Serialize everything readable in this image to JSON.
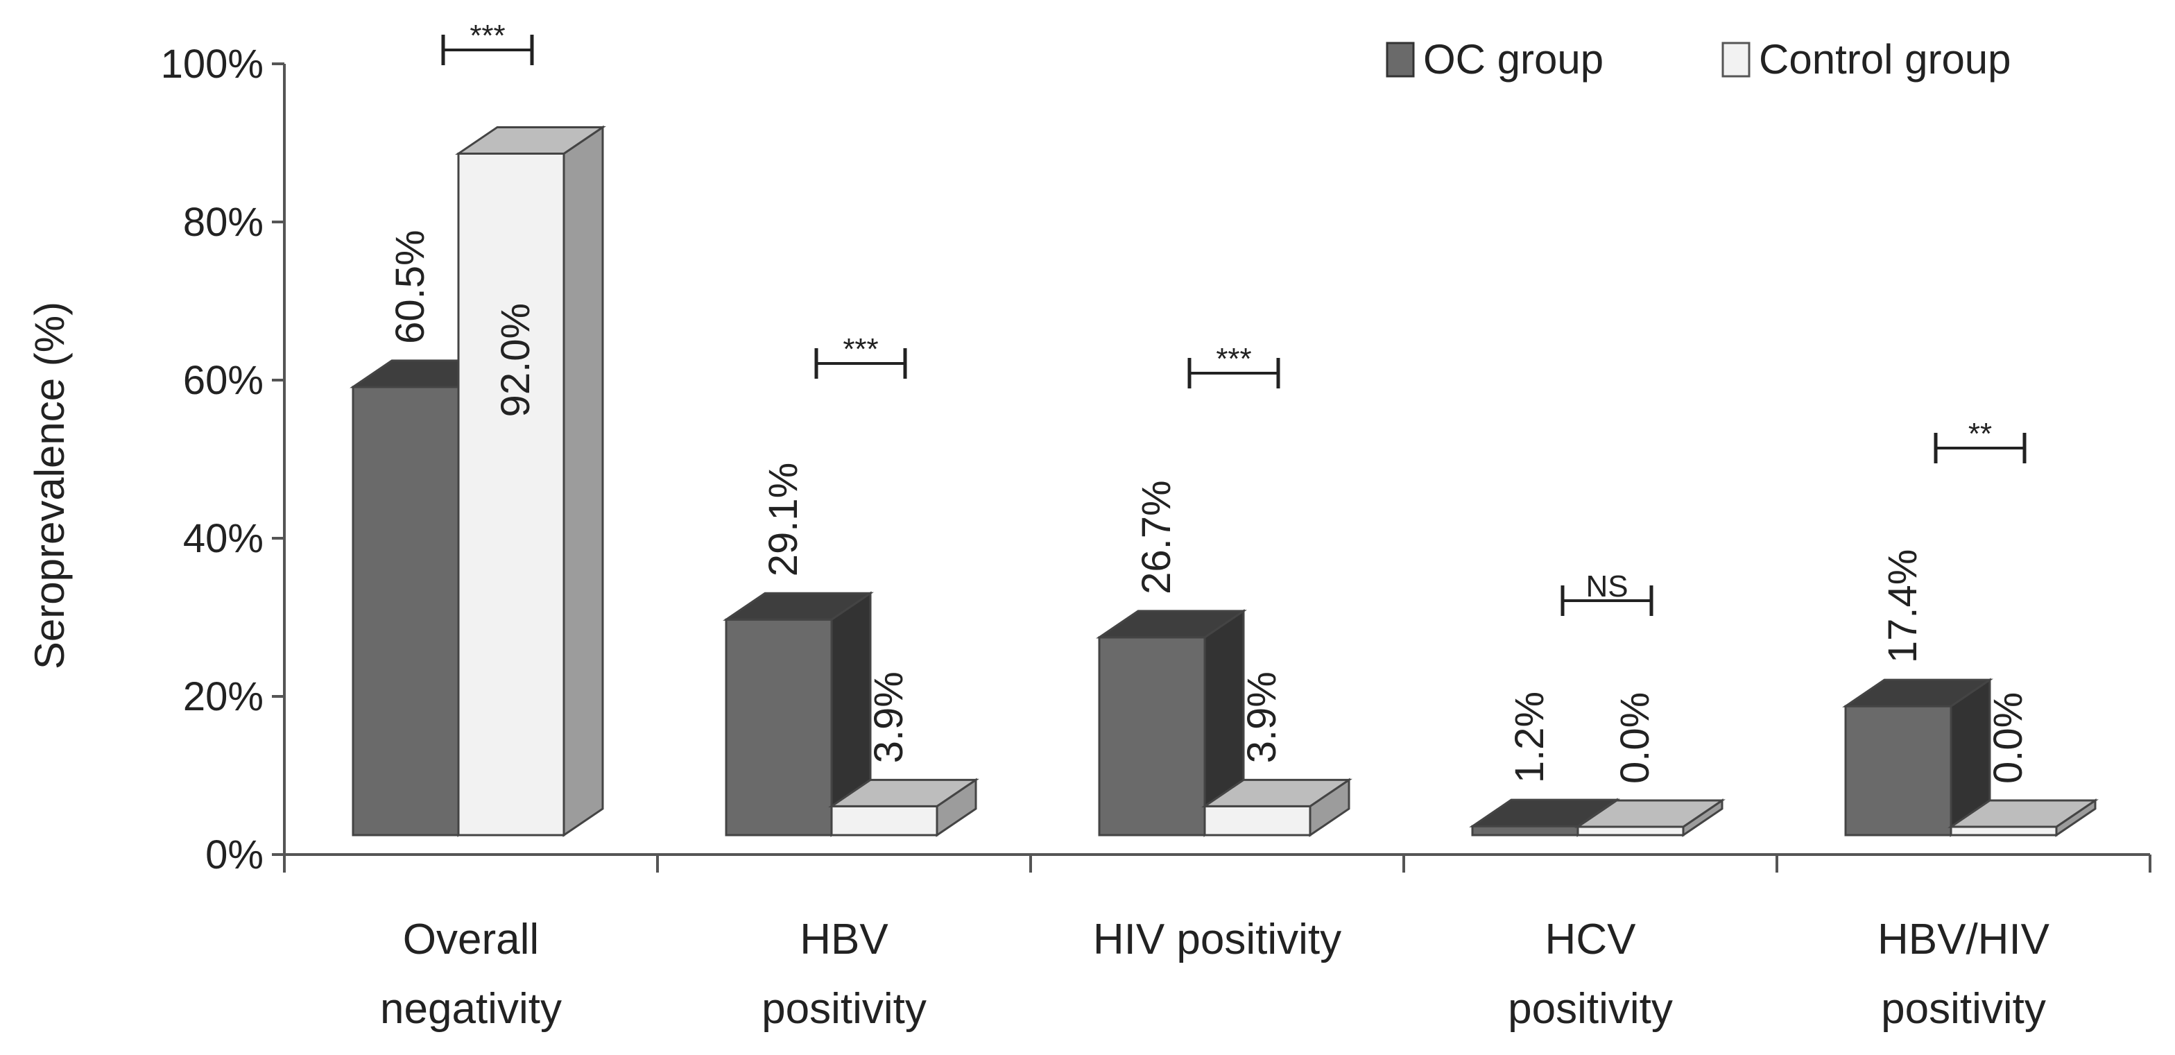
{
  "chart_data": {
    "type": "bar",
    "ylabel": "Seroprevalence (%)",
    "ylim": [
      0,
      100
    ],
    "y_ticks": [
      "0%",
      "20%",
      "40%",
      "60%",
      "80%",
      "100%"
    ],
    "categories": [
      [
        "Overall",
        "negativity"
      ],
      [
        "HBV",
        "positivity"
      ],
      [
        "HIV positivity"
      ],
      [
        "HCV",
        "positivity"
      ],
      [
        "HBV/HIV",
        "positivity"
      ]
    ],
    "series": [
      {
        "name": "OC group",
        "values": [
          60.5,
          29.1,
          26.7,
          1.2,
          17.4
        ],
        "labels": [
          "60.5%",
          "29.1%",
          "26.7%",
          "1.2%",
          "17.4%"
        ],
        "color": "#6a6a6a"
      },
      {
        "name": "Control group",
        "values": [
          92.0,
          3.9,
          3.9,
          0.0,
          0.0
        ],
        "labels": [
          "92.0%",
          "3.9%",
          "3.9%",
          "0.0%",
          "0.0%"
        ],
        "color": "#f2f2f2"
      }
    ],
    "significance": [
      "***",
      "***",
      "***",
      "NS",
      "**"
    ],
    "legend_position": "top-right",
    "three_d": true
  }
}
